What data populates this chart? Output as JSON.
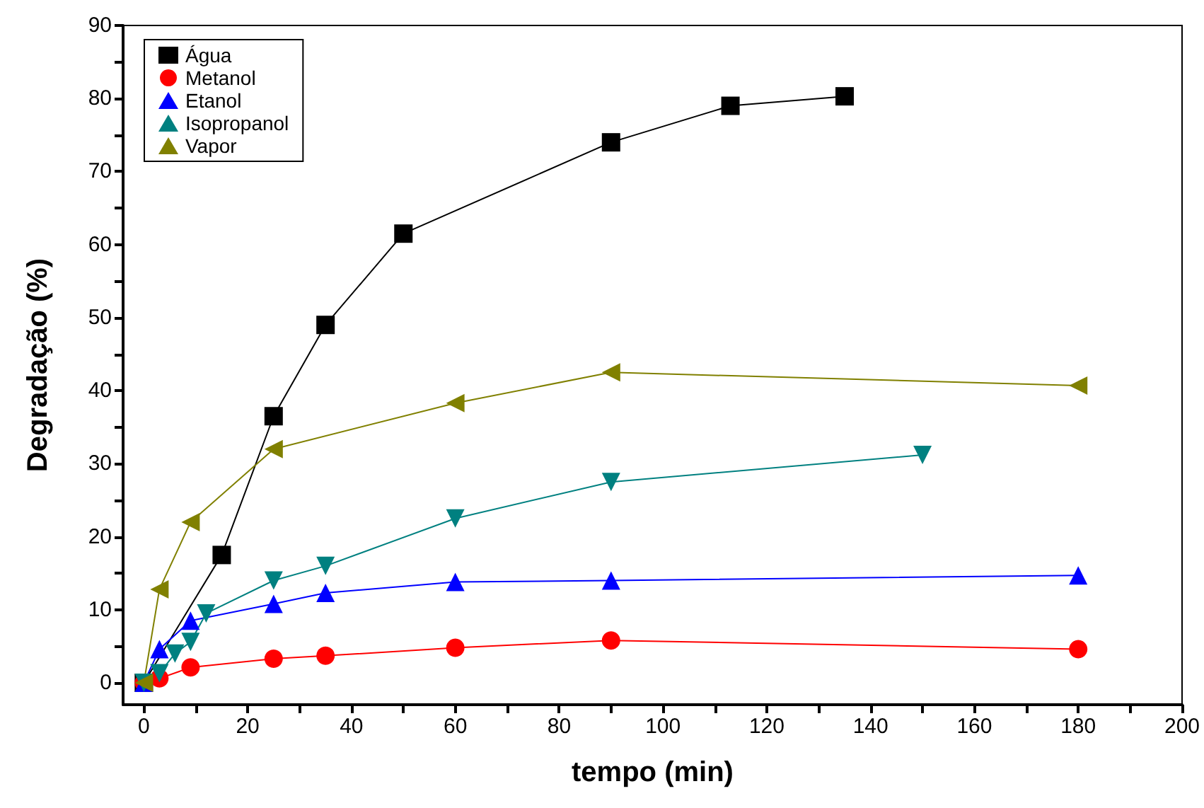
{
  "chart_data": {
    "type": "line",
    "xlabel": "tempo (min)",
    "ylabel": "Degradação (%)",
    "xlim": [
      -4,
      200
    ],
    "xticks": [
      0,
      20,
      40,
      60,
      80,
      100,
      120,
      140,
      160,
      180,
      200
    ],
    "ylim": [
      -3,
      90
    ],
    "yticks": [
      0,
      10,
      20,
      30,
      40,
      50,
      60,
      70,
      80,
      90
    ],
    "grid": false,
    "legend": "top left",
    "line_style": "solid",
    "series": [
      {
        "name": "Água",
        "color": "#000000",
        "marker": "square",
        "x": [
          0,
          15,
          25,
          35,
          50,
          90,
          113,
          135
        ],
        "values": [
          0,
          17.5,
          36.5,
          49,
          61.5,
          74,
          79,
          80.3
        ]
      },
      {
        "name": "Metanol",
        "color": "#ff0000",
        "marker": "circle",
        "x": [
          0,
          3,
          9,
          25,
          35,
          60,
          90,
          180
        ],
        "values": [
          0,
          0.6,
          2.1,
          3.3,
          3.7,
          4.8,
          5.8,
          4.6
        ]
      },
      {
        "name": "Etanol",
        "color": "#0000ff",
        "marker": "triangle",
        "x": [
          0,
          3,
          9,
          25,
          35,
          60,
          90,
          180
        ],
        "values": [
          0,
          4.6,
          8.5,
          10.8,
          12.3,
          13.8,
          14,
          14.7
        ]
      },
      {
        "name": "Isopropanol",
        "color": "#008080",
        "marker": "triangle-down",
        "x": [
          0,
          3,
          6,
          9,
          12,
          25,
          35,
          60,
          90,
          150
        ],
        "values": [
          0,
          1.3,
          4,
          5.6,
          9.5,
          14,
          16,
          22.5,
          27.5,
          31.2
        ]
      },
      {
        "name": "Vapor",
        "color": "#808000",
        "marker": "triangle-left",
        "x": [
          0,
          3,
          9,
          25,
          60,
          90,
          180
        ],
        "values": [
          0,
          12.8,
          22,
          32,
          38.3,
          42.5,
          40.7
        ]
      }
    ]
  }
}
